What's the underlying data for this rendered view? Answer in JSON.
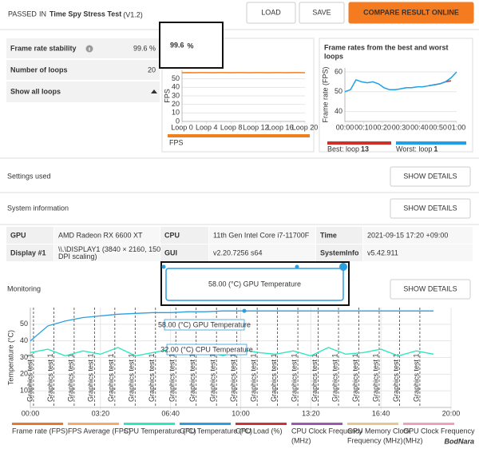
{
  "header": {
    "status": "PASSED",
    "status_suffix": "IN",
    "title": "Time Spy Stress Test",
    "version": "(V1.2)",
    "buttons": [
      "LOAD",
      "SAVE",
      "COMPARE RESULT ONLINE"
    ]
  },
  "summary": {
    "rows": [
      {
        "label": "Frame rate stability",
        "value": "99.6 %"
      },
      {
        "label": "Number of loops",
        "value": "20"
      }
    ],
    "link": "Show all loops"
  },
  "stability_callout": {
    "value": "99.6",
    "unit": "%"
  },
  "loop_chart": {
    "type": "line",
    "y_label": "FPS",
    "xlim": [
      0,
      20
    ],
    "xticks": [
      {
        "value": 0,
        "label": "Loop 0"
      },
      {
        "value": 4,
        "label": "Loop 4"
      },
      {
        "value": 8,
        "label": "Loop 8"
      },
      {
        "value": 12,
        "label": "Loop 12"
      },
      {
        "value": 16,
        "label": "Loop 16"
      },
      {
        "value": 20,
        "label": "Loop 20"
      }
    ],
    "ylim": [
      0,
      60
    ],
    "yticks": [
      0,
      10,
      20,
      30,
      40,
      50
    ],
    "series": [
      {
        "name": "FPS",
        "color": "#f07f1d",
        "x": [
          0,
          1,
          2,
          3,
          4,
          5,
          6,
          7,
          8,
          9,
          10,
          11,
          12,
          13,
          14,
          15,
          16,
          17,
          18,
          19,
          20
        ],
        "values": [
          57.2,
          57.3,
          57.2,
          57.3,
          57.3,
          57.2,
          57.3,
          57.3,
          57.2,
          57.3,
          57.3,
          57.2,
          57.3,
          57.3,
          57.2,
          57.3,
          57.3,
          57.2,
          57.3,
          57.3,
          57.2
        ]
      }
    ]
  },
  "best_worst_chart": {
    "type": "line",
    "title": [
      "Frame rates from the best and worst",
      "loops"
    ],
    "y_label": "Frame rate (FPS)",
    "xlim": [
      0,
      60
    ],
    "xticks": [
      {
        "value": 0,
        "label": "00:00"
      },
      {
        "value": 10,
        "label": "00:10"
      },
      {
        "value": 20,
        "label": "00:20"
      },
      {
        "value": 30,
        "label": "00:30"
      },
      {
        "value": 40,
        "label": "00:40"
      },
      {
        "value": 50,
        "label": "00:50"
      },
      {
        "value": 60,
        "label": "01:00"
      }
    ],
    "ylim": [
      35,
      62
    ],
    "yticks": [
      40,
      50,
      60
    ],
    "series": [
      {
        "name": "Best: loop",
        "loop": "13",
        "color": "#d0302a",
        "x": [
          45,
          48,
          51,
          54,
          57
        ],
        "values": [
          53,
          53.5,
          54,
          55,
          55.5
        ]
      },
      {
        "name": "Worst: loop",
        "loop": "1",
        "color": "#1ea1e6",
        "x": [
          0,
          3,
          6,
          9,
          12,
          15,
          18,
          21,
          24,
          27,
          30,
          33,
          36,
          39,
          42,
          45,
          48,
          51,
          54,
          57,
          60
        ],
        "values": [
          50,
          51,
          56,
          55,
          54.5,
          55,
          54,
          52,
          51,
          51,
          51.5,
          52,
          52,
          52.5,
          52.5,
          53,
          53.5,
          54,
          55,
          57,
          60
        ]
      }
    ]
  },
  "sections": [
    {
      "title": "Settings used",
      "button": "SHOW DETAILS"
    },
    {
      "title": "System information",
      "button": "SHOW DETAILS"
    },
    {
      "title": "Monitoring",
      "button": "SHOW DETAILS"
    }
  ],
  "system_info": {
    "rows": [
      [
        {
          "label": "GPU",
          "value": [
            "AMD Radeon RX 6600 XT"
          ]
        },
        {
          "label": "CPU",
          "value": [
            "11th Gen Intel Core i7-11700F"
          ]
        },
        {
          "label": "Time",
          "value": [
            "2021-09-15 17:20 +09:00"
          ]
        }
      ],
      [
        {
          "label": "Display #1",
          "value": [
            "\\\\.\\DISPLAY1 (3840 × 2160, 150%",
            "DPI scaling)"
          ]
        },
        {
          "label": "GUI",
          "value": [
            "v2.20.7256 s64"
          ]
        },
        {
          "label": "SystemInfo",
          "value": [
            "v5.42.911"
          ]
        }
      ]
    ]
  },
  "gpu_callout": "58.00 (°C) GPU Temperature",
  "monitoring_chart": {
    "type": "line",
    "y_label": "Temperature (°C)",
    "xlim": [
      0,
      1200
    ],
    "xticks": [
      {
        "value": 0,
        "label": "00:00"
      },
      {
        "value": 200,
        "label": "03:20"
      },
      {
        "value": 400,
        "label": "06:40"
      },
      {
        "value": 600,
        "label": "10:00"
      },
      {
        "value": 800,
        "label": "13:20"
      },
      {
        "value": 1000,
        "label": "16:40"
      },
      {
        "value": 1200,
        "label": "20:00"
      }
    ],
    "ylim": [
      0,
      60
    ],
    "yticks": [
      10,
      20,
      30,
      40,
      50
    ],
    "markers": {
      "label": "Graphics test 1",
      "x": [
        9,
        67,
        125,
        183,
        241,
        299,
        357,
        415,
        473,
        531,
        589,
        647,
        705,
        763,
        821,
        879,
        937,
        995,
        1053,
        1111
      ]
    },
    "tooltips": [
      "58.00 (°C) GPU Temperature",
      "32.00 (°C) CPU Temperature"
    ],
    "x": [
      0,
      50,
      100,
      150,
      200,
      250,
      300,
      350,
      400,
      450,
      500,
      550,
      600,
      650,
      700,
      750,
      800,
      850,
      900,
      950,
      1000,
      1050,
      1100,
      1150
    ],
    "series": [
      {
        "lines": [
          "Frame rate (FPS)"
        ],
        "color": "#e8782a"
      },
      {
        "lines": [
          "FPS Average (FPS)"
        ],
        "color": "#f5a96b"
      },
      {
        "lines": [
          "CPU Temperature (°C)"
        ],
        "color": "#2ee6c0",
        "values": [
          33,
          35,
          31,
          34,
          32,
          36,
          31,
          33,
          35,
          32,
          34,
          31,
          35,
          33,
          32,
          34,
          31,
          36,
          32,
          33,
          35,
          31,
          34,
          32
        ]
      },
      {
        "lines": [
          "GPU Temperature (°C)"
        ],
        "color": "#2a9fe0",
        "values": [
          40,
          49,
          52,
          54,
          55,
          56,
          56.5,
          57,
          57,
          57.5,
          57.5,
          58,
          58,
          58,
          58,
          58,
          58,
          58,
          58,
          58,
          58,
          58,
          58,
          58
        ]
      },
      {
        "lines": [
          "GPU Load (%)"
        ],
        "color": "#c8343a"
      },
      {
        "lines": [
          "CPU Clock Frequency",
          "(MHz)"
        ],
        "color": "#9b59b6"
      },
      {
        "lines": [
          "GPU Memory Clock",
          "Frequency (MHz)"
        ],
        "color": "#e6c88a"
      },
      {
        "lines": [
          "GPU Clock Frequency",
          "(MHz)"
        ],
        "color": "#f0a0b8"
      }
    ]
  },
  "watermark": "BodNara"
}
